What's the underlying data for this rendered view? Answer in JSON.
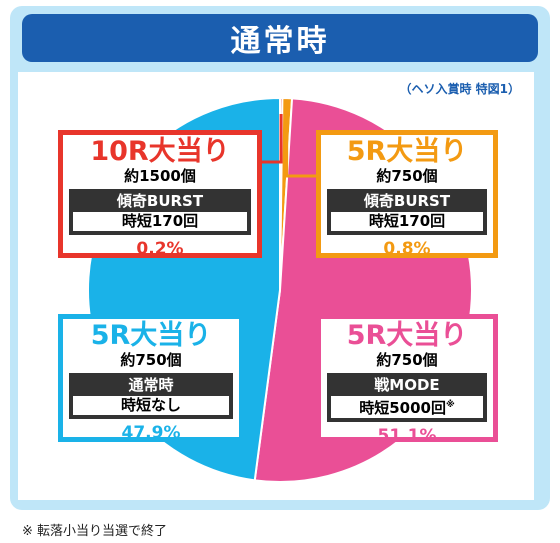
{
  "title": "通常時",
  "source_note": "（ヘソ入賞時 特図1）",
  "footnote": "※ 転落小当り当選で終了",
  "colors": {
    "red": "#e8352b",
    "orange": "#f39a12",
    "pink": "#ea4f96",
    "cyan": "#1ab2e8",
    "title_bg": "#1b5eaf"
  },
  "chart_data": {
    "type": "pie",
    "title": "通常時",
    "slices": [
      {
        "label": "10R大当り",
        "payout": "約1500個",
        "mode": "傾奇BURST",
        "short": "時短170回",
        "mark": "",
        "percent_label": "0.2%",
        "value": 0.2,
        "color": "#e8352b"
      },
      {
        "label": "5R大当り",
        "payout": "約750個",
        "mode": "傾奇BURST",
        "short": "時短170回",
        "mark": "",
        "percent_label": "0.8%",
        "value": 0.8,
        "color": "#f39a12"
      },
      {
        "label": "5R大当り",
        "payout": "約750個",
        "mode": "戦MODE",
        "short": "時短5000回",
        "mark": "※",
        "percent_label": "51.1%",
        "value": 51.1,
        "color": "#ea4f96"
      },
      {
        "label": "5R大当り",
        "payout": "約750個",
        "mode": "通常時",
        "short": "時短なし",
        "mark": "",
        "percent_label": "47.9%",
        "value": 47.9,
        "color": "#1ab2e8"
      }
    ]
  }
}
